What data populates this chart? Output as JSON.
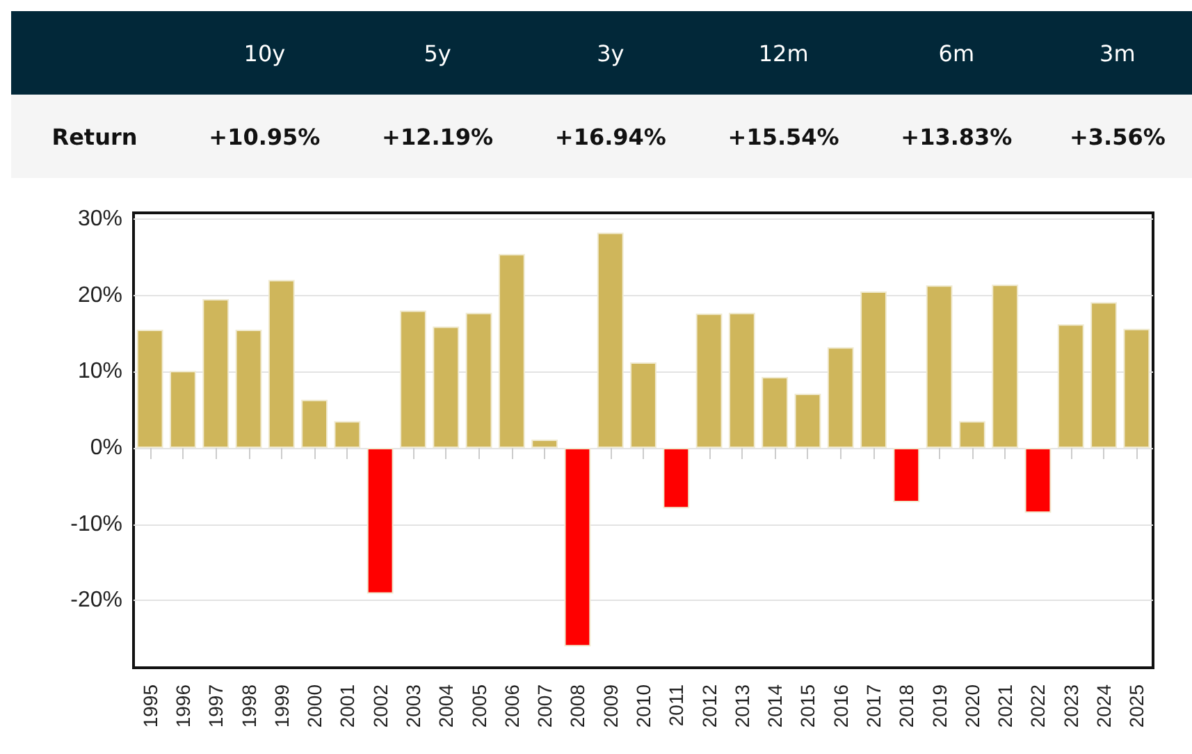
{
  "chart_data": {
    "type": "bar",
    "annotations": [
      "10y",
      "5y",
      "3y",
      "12m",
      "6m",
      "3m",
      "Return",
      "+10.95%",
      "+12.19%",
      "+16.94%",
      "+15.54%",
      "+13.83%",
      "+3.56%"
    ],
    "categories": [
      "1995",
      "1996",
      "1997",
      "1998",
      "1999",
      "2000",
      "2001",
      "2002",
      "2003",
      "2004",
      "2005",
      "2006",
      "2007",
      "2008",
      "2009",
      "2010",
      "2011",
      "2012",
      "2013",
      "2014",
      "2015",
      "2016",
      "2017",
      "2018",
      "2019",
      "2020",
      "2021",
      "2022",
      "2023",
      "2024",
      "2025"
    ],
    "values": [
      15.5,
      10.1,
      19.5,
      15.5,
      22.0,
      6.3,
      3.5,
      -19.1,
      18.0,
      15.9,
      17.7,
      25.4,
      1.1,
      -26.0,
      28.2,
      11.2,
      -7.9,
      17.6,
      17.7,
      9.3,
      7.1,
      13.2,
      20.5,
      -7.1,
      21.3,
      3.5,
      21.4,
      -8.5,
      16.2,
      19.1,
      15.6
    ],
    "colors": [
      "#cfb65b",
      "#cfb65b",
      "#cfb65b",
      "#cfb65b",
      "#cfb65b",
      "#cfb65b",
      "#cfb65b",
      "#ff0000",
      "#cfb65b",
      "#cfb65b",
      "#cfb65b",
      "#cfb65b",
      "#cfb65b",
      "#ff0000",
      "#cfb65b",
      "#cfb65b",
      "#ff0000",
      "#cfb65b",
      "#cfb65b",
      "#cfb65b",
      "#cfb65b",
      "#cfb65b",
      "#cfb65b",
      "#ff0000",
      "#cfb65b",
      "#cfb65b",
      "#cfb65b",
      "#ff0000",
      "#cfb65b",
      "#cfb65b",
      "#cfb65b"
    ],
    "ylim": [
      -28.8,
      30.8
    ],
    "yticks": [
      {
        "value": -20,
        "label": "-20%"
      },
      {
        "value": -10,
        "label": "-10%"
      },
      {
        "value": 0,
        "label": "0%"
      },
      {
        "value": 10,
        "label": "10%"
      },
      {
        "value": 20,
        "label": "20%"
      },
      {
        "value": 30,
        "label": "30%"
      }
    ],
    "grid": "y"
  }
}
